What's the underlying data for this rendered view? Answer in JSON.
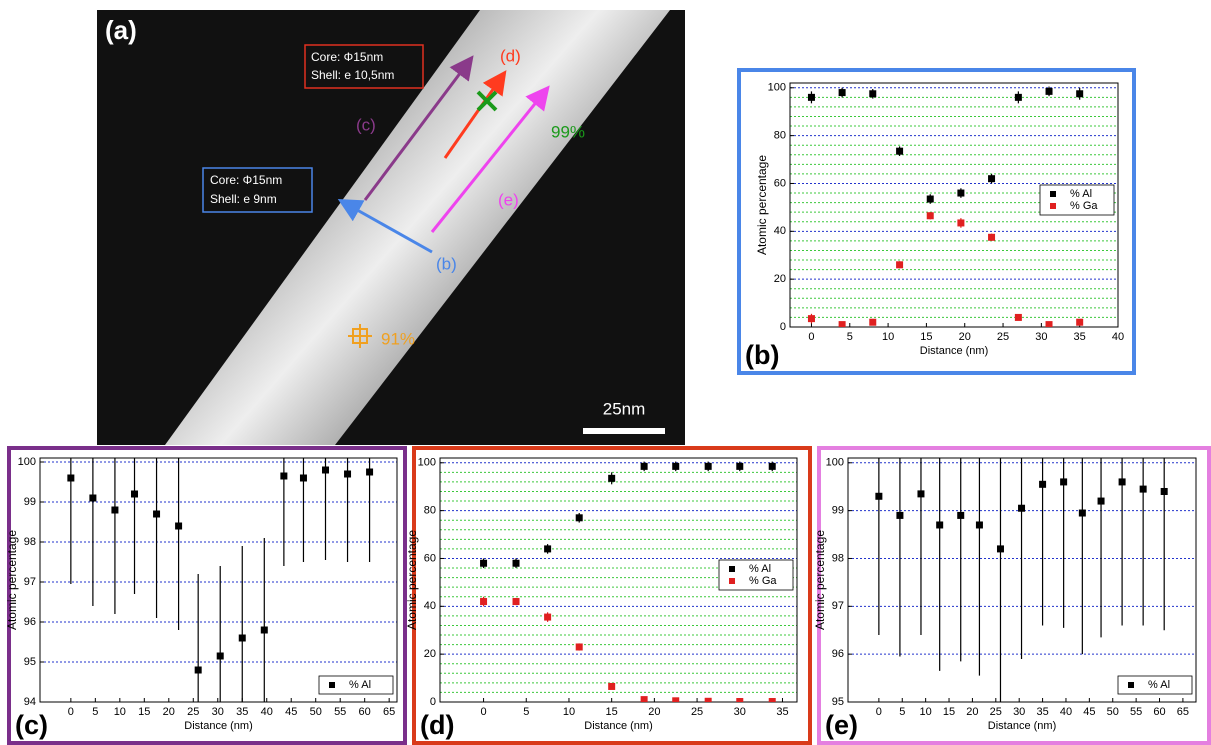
{
  "image": {
    "panel_label": "(a)",
    "box_d": [
      "Core: Φ15nm",
      "Shell: e 10,5nm"
    ],
    "box_b": [
      "Core: Φ15nm",
      "Shell: e 9nm"
    ],
    "arrow_labels": [
      "(d)",
      "(c)",
      "(e)",
      "(b)"
    ],
    "green_value": "99%",
    "orange_value": "91%",
    "scale_bar": "25nm"
  },
  "chart_data": [
    {
      "type": "scatter",
      "label": "(b)",
      "x_label": "Distance (nm)",
      "y_label": "Atomic percentage",
      "xlim": [
        -2.8,
        40
      ],
      "ylim": [
        0,
        102
      ],
      "xticks": [
        0,
        5,
        10,
        15,
        20,
        25,
        30,
        35,
        40
      ],
      "yticks": [
        0,
        20,
        40,
        60,
        80,
        100
      ],
      "minor_yticks": [
        4,
        8,
        12,
        16,
        24,
        28,
        32,
        36,
        44,
        48,
        52,
        56,
        64,
        68,
        72,
        76,
        84,
        88,
        92,
        96
      ],
      "grid": true,
      "legend": "center right",
      "x": [
        0,
        4,
        8,
        11.5,
        15.5,
        19.5,
        23.5,
        27,
        31,
        35
      ],
      "series": [
        {
          "name": "% Al",
          "color": "#000000",
          "values": [
            96,
            98,
            97.5,
            73.5,
            53.5,
            56,
            62,
            96,
            98.5,
            97.5
          ],
          "errors": [
            2.5,
            2,
            2,
            2,
            2,
            2,
            2,
            2.5,
            2,
            2.5
          ]
        },
        {
          "name": "% Ga",
          "color": "#e02020",
          "values": [
            3.5,
            1,
            2,
            26,
            46.5,
            43.5,
            37.5,
            4,
            1,
            2
          ],
          "errors": [
            2,
            1,
            1,
            1.5,
            1.5,
            2,
            1.5,
            1,
            1,
            1
          ]
        }
      ]
    },
    {
      "type": "scatter",
      "label": "(c)",
      "x_label": "Distance (nm)",
      "y_label": "Atomic percentage",
      "xlim": [
        -6.3,
        66.6
      ],
      "ylim": [
        94,
        100.1
      ],
      "xticks": [
        0,
        5,
        10,
        15,
        20,
        25,
        30,
        35,
        40,
        45,
        50,
        55,
        60,
        65
      ],
      "yticks": [
        94,
        95,
        96,
        97,
        98,
        99,
        100
      ],
      "minor_yticks": [],
      "grid": true,
      "legend": "lower right",
      "x": [
        0,
        4.5,
        9,
        13,
        17.5,
        22,
        26,
        30.5,
        35,
        39.5,
        43.5,
        47.5,
        52,
        56.5,
        61
      ],
      "series": [
        {
          "name": "% Al",
          "color": "#000000",
          "values": [
            99.6,
            99.1,
            98.8,
            99.2,
            98.7,
            98.4,
            94.8,
            95.15,
            95.6,
            95.8,
            99.65,
            99.6,
            99.8,
            99.7,
            99.75
          ],
          "errors": [
            2.65,
            2.7,
            2.6,
            2.5,
            2.6,
            2.6,
            2.4,
            2.25,
            2.3,
            2.3,
            2.25,
            2.1,
            2.25,
            2.2,
            2.25
          ]
        }
      ]
    },
    {
      "type": "scatter",
      "label": "(d)",
      "x_label": "Distance (nm)",
      "y_label": "Atomic percentage",
      "xlim": [
        -5.1,
        36.7
      ],
      "ylim": [
        0,
        102
      ],
      "xticks": [
        0,
        5,
        10,
        15,
        20,
        25,
        30,
        35
      ],
      "yticks": [
        0,
        20,
        40,
        60,
        80,
        100
      ],
      "minor_yticks": [
        4,
        8,
        12,
        16,
        24,
        28,
        32,
        36,
        44,
        48,
        52,
        56,
        64,
        68,
        72,
        76,
        84,
        88,
        92,
        96
      ],
      "grid": true,
      "legend": "center right",
      "x": [
        0,
        3.8,
        7.5,
        11.2,
        15,
        18.8,
        22.5,
        26.3,
        30,
        33.8
      ],
      "series": [
        {
          "name": "% Al",
          "color": "#000000",
          "values": [
            58,
            58,
            64,
            77,
            93.5,
            98.5,
            98.5,
            98.5,
            98.5,
            98.5
          ],
          "errors": [
            2,
            2,
            2,
            2,
            2.5,
            2,
            2,
            2,
            2,
            2
          ]
        },
        {
          "name": "% Ga",
          "color": "#e02020",
          "values": [
            42,
            42,
            35.5,
            23,
            6.5,
            1,
            0.5,
            0.3,
            0.2,
            0.2
          ],
          "errors": [
            2,
            1.5,
            2,
            1.5,
            1,
            0.5,
            0.5,
            0.3,
            0.2,
            0.2
          ]
        }
      ]
    },
    {
      "type": "scatter",
      "label": "(e)",
      "x_label": "Distance (nm)",
      "y_label": "Atomic percentage",
      "xlim": [
        -6.6,
        67.8
      ],
      "ylim": [
        95,
        100.1
      ],
      "xticks": [
        0,
        5,
        10,
        15,
        20,
        25,
        30,
        35,
        40,
        45,
        50,
        55,
        60,
        65
      ],
      "yticks": [
        95,
        96,
        97,
        98,
        99,
        100
      ],
      "minor_yticks": [],
      "grid": true,
      "legend": "lower right",
      "x": [
        0,
        4.5,
        9,
        13,
        17.5,
        21.5,
        26,
        30.5,
        35,
        39.5,
        43.5,
        47.5,
        52,
        56.5,
        61
      ],
      "series": [
        {
          "name": "% Al",
          "color": "#000000",
          "values": [
            99.3,
            98.9,
            99.35,
            98.7,
            98.9,
            98.7,
            98.2,
            99.05,
            99.55,
            99.6,
            98.95,
            99.2,
            99.6,
            99.45,
            99.4
          ],
          "errors": [
            2.9,
            2.95,
            2.95,
            3.05,
            3.05,
            3.15,
            3.2,
            3.15,
            2.95,
            3.05,
            2.95,
            2.85,
            3,
            2.85,
            2.9
          ]
        }
      ]
    }
  ]
}
